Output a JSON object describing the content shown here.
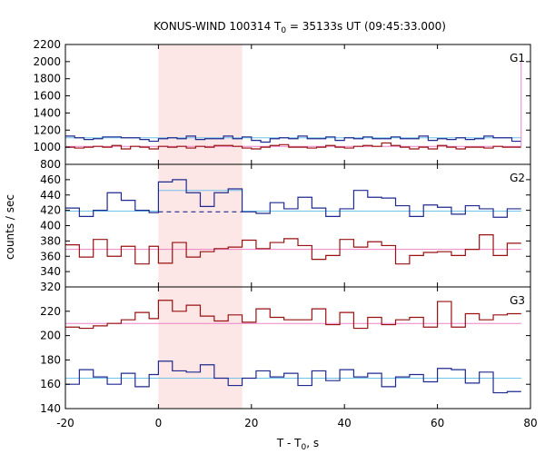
{
  "chart_data": {
    "type": "line",
    "title_prefix": "KONUS-WIND 100314 T",
    "title_sub": "0",
    "title_suffix": " = 35133s UT (09:45:33.000)",
    "xlabel_prefix": "T - T",
    "xlabel_sub": "0",
    "xlabel_suffix": ", s",
    "ylabel": "counts / sec",
    "xlim": [
      -20,
      80
    ],
    "xticks": [
      "-20",
      "0",
      "20",
      "40",
      "60",
      "80"
    ],
    "shaded_interval": [
      0,
      18
    ],
    "colors": {
      "blue": "#1e2a8f",
      "red": "#991111",
      "cyan": "#6fc4e8",
      "pink": "#ee82c8",
      "shade": "#fde6e6"
    },
    "panels": [
      {
        "label": "G1",
        "ylim": [
          800,
          2200
        ],
        "yticks": [
          "800",
          "1000",
          "1200",
          "1400",
          "1600",
          "1800",
          "2000",
          "2200"
        ],
        "bin_edges": [
          -20,
          -18,
          -16,
          -14,
          -12,
          -10,
          -8,
          -6,
          -4,
          -2,
          0,
          2,
          4,
          6,
          8,
          10,
          12,
          14,
          16,
          18,
          20,
          22,
          24,
          26,
          28,
          30,
          32,
          34,
          36,
          38,
          40,
          42,
          44,
          46,
          48,
          50,
          52,
          54,
          56,
          58,
          60,
          62,
          64,
          66,
          68,
          70,
          72,
          74,
          76,
          78
        ],
        "series": [
          {
            "color": "blue",
            "values": [
              1130,
              1110,
              1090,
              1100,
              1120,
              1120,
              1110,
              1110,
              1090,
              1070,
              1100,
              1110,
              1100,
              1130,
              1090,
              1100,
              1100,
              1130,
              1100,
              1120,
              1080,
              1060,
              1100,
              1110,
              1100,
              1130,
              1100,
              1100,
              1120,
              1080,
              1110,
              1100,
              1120,
              1100,
              1100,
              1120,
              1100,
              1100,
              1130,
              1080,
              1100,
              1090,
              1110,
              1090,
              1100,
              1130,
              1110,
              1110,
              1070
            ]
          },
          {
            "color": "red",
            "values": [
              1000,
              990,
              1000,
              1010,
              1000,
              1020,
              980,
              1010,
              1000,
              980,
              1010,
              1000,
              1010,
              990,
              1010,
              1000,
              1020,
              1020,
              1010,
              990,
              980,
              1000,
              1020,
              1030,
              1000,
              1000,
              990,
              1000,
              1020,
              1000,
              990,
              1010,
              1020,
              1010,
              1050,
              1020,
              1000,
              980,
              1000,
              980,
              1020,
              1000,
              980,
              1000,
              1000,
              990,
              1010,
              1000,
              1000
            ]
          }
        ],
        "fits": [
          {
            "color": "cyan",
            "segments": [
              {
                "x": [
                  -20,
                  78
                ],
                "y": 1110,
                "dashed": false
              }
            ]
          },
          {
            "color": "pink",
            "segments": [
              {
                "x": [
                  -20,
                  78
                ],
                "y": 1010,
                "dashed": false
              }
            ]
          }
        ],
        "marker_line": {
          "color": "pink",
          "x": 78,
          "y": [
            1010,
            2000
          ]
        }
      },
      {
        "label": "G2",
        "ylim": [
          320,
          480
        ],
        "yticks": [
          "320",
          "340",
          "360",
          "380",
          "400",
          "420",
          "440",
          "460"
        ],
        "bin_edges": [
          -20,
          -17,
          -14,
          -11,
          -8,
          -5,
          -2,
          0,
          3,
          6,
          9,
          12,
          15,
          18,
          21,
          24,
          27,
          30,
          33,
          36,
          39,
          42,
          45,
          48,
          51,
          54,
          57,
          60,
          63,
          66,
          69,
          72,
          75,
          78
        ],
        "series": [
          {
            "color": "blue",
            "values": [
              423,
              412,
              420,
              443,
              433,
              420,
              417,
              457,
              460,
              443,
              425,
              443,
              448,
              418,
              416,
              430,
              422,
              437,
              423,
              412,
              422,
              446,
              437,
              436,
              426,
              412,
              427,
              424,
              415,
              426,
              422,
              411,
              422
            ]
          },
          {
            "color": "red",
            "values": [
              375,
              359,
              382,
              360,
              373,
              350,
              373,
              351,
              378,
              359,
              366,
              370,
              372,
              381,
              370,
              378,
              383,
              374,
              356,
              361,
              382,
              372,
              379,
              374,
              350,
              361,
              365,
              366,
              361,
              369,
              388,
              361,
              377
            ]
          }
        ],
        "fits": [
          {
            "color": "cyan",
            "segments": [
              {
                "x": [
                  -20,
                  0
                ],
                "y": 419,
                "dashed": false
              },
              {
                "x": [
                  0,
                  18
                ],
                "y": 446,
                "dashed": false
              },
              {
                "x": [
                  18,
                  78
                ],
                "y": 419,
                "dashed": false
              }
            ]
          },
          {
            "color": "blue",
            "segments": [
              {
                "x": [
                  0,
                  18
                ],
                "y": 418,
                "dashed": true
              }
            ]
          },
          {
            "color": "pink",
            "segments": [
              {
                "x": [
                  -20,
                  78
                ],
                "y": 369,
                "dashed": false
              }
            ]
          }
        ],
        "marker_line": null
      },
      {
        "label": "G3",
        "ylim": [
          140,
          240
        ],
        "yticks": [
          "140",
          "160",
          "180",
          "200",
          "220"
        ],
        "bin_edges": [
          -20,
          -17,
          -14,
          -11,
          -8,
          -5,
          -2,
          0,
          3,
          6,
          9,
          12,
          15,
          18,
          21,
          24,
          27,
          30,
          33,
          36,
          39,
          42,
          45,
          48,
          51,
          54,
          57,
          60,
          63,
          66,
          69,
          72,
          75,
          78
        ],
        "series": [
          {
            "color": "red",
            "values": [
              207,
              206,
              208,
              210,
              213,
              219,
              214,
              229,
              220,
              225,
              216,
              212,
              217,
              211,
              222,
              215,
              213,
              213,
              222,
              209,
              219,
              206,
              215,
              209,
              213,
              215,
              207,
              228,
              207,
              218,
              213,
              217,
              218
            ]
          },
          {
            "color": "blue",
            "values": [
              160,
              172,
              166,
              160,
              169,
              158,
              168,
              179,
              171,
              170,
              176,
              165,
              159,
              165,
              171,
              166,
              169,
              159,
              171,
              163,
              172,
              166,
              169,
              158,
              166,
              168,
              162,
              173,
              172,
              161,
              170,
              153,
              154
            ]
          }
        ],
        "fits": [
          {
            "color": "pink",
            "segments": [
              {
                "x": [
                  -20,
                  78
                ],
                "y": 210,
                "dashed": false
              }
            ]
          },
          {
            "color": "cyan",
            "segments": [
              {
                "x": [
                  -20,
                  78
                ],
                "y": 165,
                "dashed": false
              }
            ]
          }
        ],
        "marker_line": null
      }
    ]
  }
}
